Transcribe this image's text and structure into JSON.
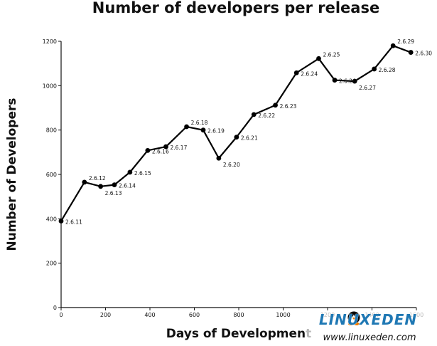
{
  "chart_data": {
    "type": "line",
    "title": "Number of developers per release",
    "xlabel": "Days of Development",
    "ylabel": "Number of Developers",
    "xlim": [
      0,
      1600
    ],
    "ylim": [
      0,
      1200
    ],
    "x_ticks": [
      "0",
      "200",
      "400",
      "600",
      "800",
      "1000",
      "1200",
      "1400",
      "1600"
    ],
    "y_ticks": [
      "0",
      "200",
      "400",
      "600",
      "800",
      "1000",
      "1200"
    ],
    "grid": false,
    "line_color": "#000000",
    "series": [
      {
        "points": [
          {
            "label": "2.6.11",
            "x": 0,
            "y": 390
          },
          {
            "label": "2.6.12",
            "x": 105,
            "y": 565
          },
          {
            "label": "2.6.13",
            "x": 178,
            "y": 546
          },
          {
            "label": "2.6.14",
            "x": 240,
            "y": 553
          },
          {
            "label": "2.6.15",
            "x": 310,
            "y": 610
          },
          {
            "label": "2.6.16",
            "x": 390,
            "y": 708
          },
          {
            "label": "2.6.17",
            "x": 472,
            "y": 725
          },
          {
            "label": "2.6.18",
            "x": 565,
            "y": 815
          },
          {
            "label": "2.6.19",
            "x": 640,
            "y": 800
          },
          {
            "label": "2.6.20",
            "x": 710,
            "y": 673
          },
          {
            "label": "2.6.21",
            "x": 790,
            "y": 768
          },
          {
            "label": "2.6.22",
            "x": 868,
            "y": 870
          },
          {
            "label": "2.6.23",
            "x": 965,
            "y": 912
          },
          {
            "label": "2.6.24",
            "x": 1060,
            "y": 1058
          },
          {
            "label": "2.6.25",
            "x": 1160,
            "y": 1122
          },
          {
            "label": "2.6.26",
            "x": 1232,
            "y": 1025
          },
          {
            "label": "2.6.27",
            "x": 1322,
            "y": 1020
          },
          {
            "label": "2.6.28",
            "x": 1410,
            "y": 1075
          },
          {
            "label": "2.6.29",
            "x": 1495,
            "y": 1180
          },
          {
            "label": "2.6.30",
            "x": 1575,
            "y": 1150
          }
        ]
      }
    ]
  },
  "watermark": {
    "brand": "LINUXEDEN",
    "url": "www.linuxeden.com",
    "color": "#1f78b4",
    "accent_color": "#f07c00"
  }
}
